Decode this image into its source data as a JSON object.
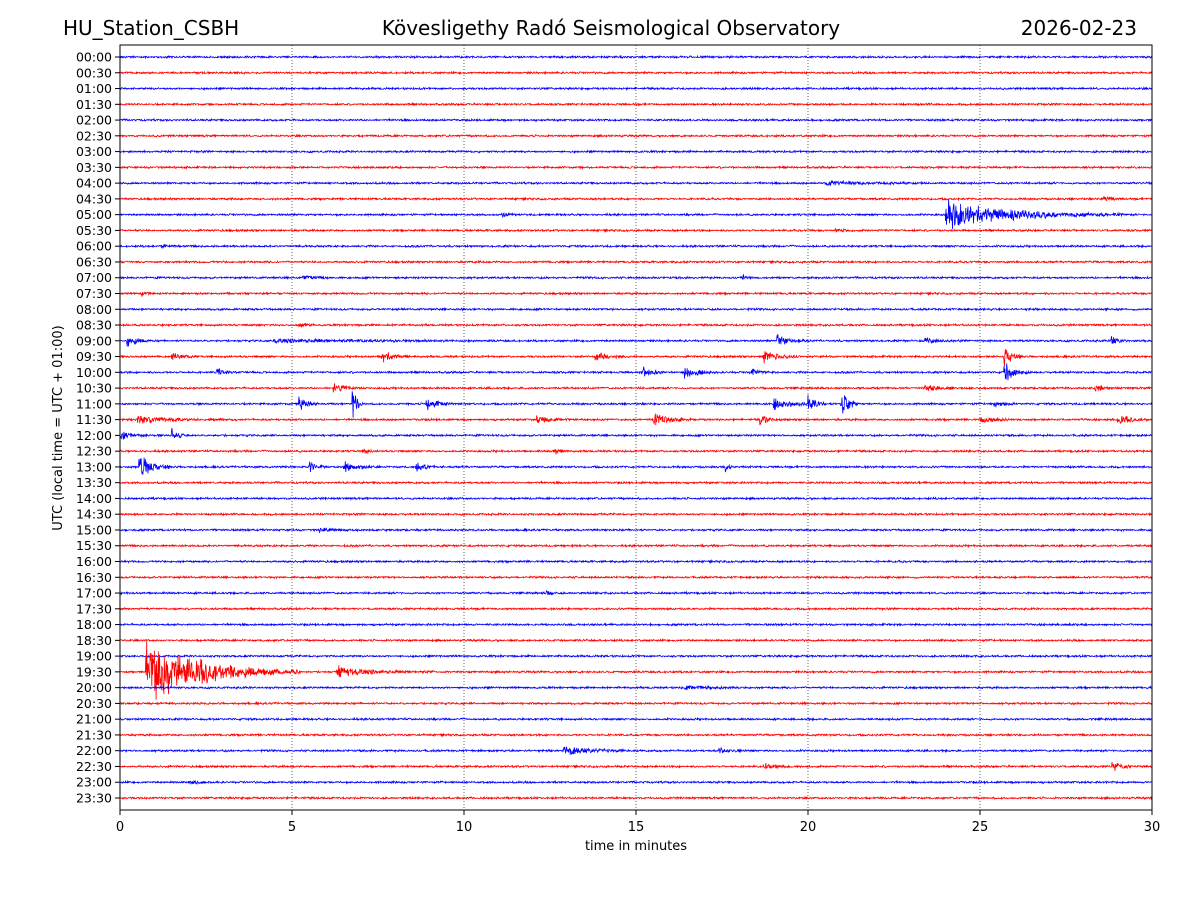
{
  "header": {
    "station": "HU_Station_CSBH",
    "observatory": "Kövesligethy Radó Seismological Observatory",
    "date": "2026-02-23"
  },
  "chart_data": {
    "type": "line",
    "title": "Kövesligethy Radó Seismological Observatory",
    "xlabel": "time in minutes",
    "ylabel": "UTC (local time = UTC + 01:00)",
    "xlim": [
      0,
      30
    ],
    "xticks": [
      "0",
      "5",
      "10",
      "15",
      "20",
      "25",
      "30"
    ],
    "grid": "vertical dotted at each 5 minutes",
    "row_labels": [
      "00:00",
      "00:30",
      "01:00",
      "01:30",
      "02:00",
      "02:30",
      "03:00",
      "03:30",
      "04:00",
      "04:30",
      "05:00",
      "05:30",
      "06:00",
      "06:30",
      "07:00",
      "07:30",
      "08:00",
      "08:30",
      "09:00",
      "09:30",
      "10:00",
      "10:30",
      "11:00",
      "11:30",
      "12:00",
      "12:30",
      "13:00",
      "13:30",
      "14:00",
      "14:30",
      "15:00",
      "15:30",
      "16:00",
      "16:30",
      "17:00",
      "17:30",
      "18:00",
      "18:30",
      "19:00",
      "19:30",
      "20:00",
      "20:30",
      "21:00",
      "21:30",
      "22:00",
      "22:30",
      "23:00",
      "23:30"
    ],
    "colors": [
      "#0000ff",
      "#ff0000"
    ],
    "noise_level": 0.05,
    "events": [
      {
        "row": 8,
        "start": 20.5,
        "dur": 3.0,
        "amp": 0.15
      },
      {
        "row": 9,
        "start": 28.6,
        "dur": 0.4,
        "amp": 0.2
      },
      {
        "row": 10,
        "start": 11.1,
        "dur": 0.4,
        "amp": 0.15
      },
      {
        "row": 10,
        "start": 24.0,
        "dur": 5.2,
        "amp": 1.0
      },
      {
        "row": 11,
        "start": 20.8,
        "dur": 0.5,
        "amp": 0.1
      },
      {
        "row": 12,
        "start": 1.2,
        "dur": 0.6,
        "amp": 0.15
      },
      {
        "row": 14,
        "start": 5.3,
        "dur": 0.8,
        "amp": 0.15
      },
      {
        "row": 14,
        "start": 18.1,
        "dur": 0.4,
        "amp": 0.2
      },
      {
        "row": 15,
        "start": 0.6,
        "dur": 0.4,
        "amp": 0.25
      },
      {
        "row": 17,
        "start": 5.2,
        "dur": 0.5,
        "amp": 0.25
      },
      {
        "row": 18,
        "start": 0.2,
        "dur": 0.7,
        "amp": 0.5
      },
      {
        "row": 18,
        "start": 4.5,
        "dur": 6.0,
        "amp": 0.15
      },
      {
        "row": 18,
        "start": 19.1,
        "dur": 0.8,
        "amp": 0.5
      },
      {
        "row": 18,
        "start": 23.4,
        "dur": 0.8,
        "amp": 0.3
      },
      {
        "row": 18,
        "start": 28.8,
        "dur": 0.5,
        "amp": 0.4
      },
      {
        "row": 19,
        "start": 1.5,
        "dur": 0.8,
        "amp": 0.25
      },
      {
        "row": 19,
        "start": 7.6,
        "dur": 0.8,
        "amp": 0.5
      },
      {
        "row": 19,
        "start": 13.8,
        "dur": 1.0,
        "amp": 0.35
      },
      {
        "row": 19,
        "start": 18.7,
        "dur": 1.0,
        "amp": 0.5
      },
      {
        "row": 19,
        "start": 25.7,
        "dur": 0.6,
        "amp": 0.9
      },
      {
        "row": 20,
        "start": 2.8,
        "dur": 0.6,
        "amp": 0.3
      },
      {
        "row": 20,
        "start": 15.2,
        "dur": 0.6,
        "amp": 0.5
      },
      {
        "row": 20,
        "start": 16.4,
        "dur": 1.0,
        "amp": 0.5
      },
      {
        "row": 20,
        "start": 18.3,
        "dur": 0.6,
        "amp": 0.3
      },
      {
        "row": 20,
        "start": 25.7,
        "dur": 0.8,
        "amp": 0.7
      },
      {
        "row": 21,
        "start": 6.2,
        "dur": 1.0,
        "amp": 0.35
      },
      {
        "row": 21,
        "start": 23.4,
        "dur": 1.0,
        "amp": 0.3
      },
      {
        "row": 21,
        "start": 28.3,
        "dur": 0.8,
        "amp": 0.3
      },
      {
        "row": 22,
        "start": 5.2,
        "dur": 0.6,
        "amp": 0.6
      },
      {
        "row": 22,
        "start": 6.75,
        "dur": 0.3,
        "amp": 1.5
      },
      {
        "row": 22,
        "start": 8.9,
        "dur": 0.8,
        "amp": 0.5
      },
      {
        "row": 22,
        "start": 19.0,
        "dur": 1.5,
        "amp": 0.45
      },
      {
        "row": 22,
        "start": 20.0,
        "dur": 0.5,
        "amp": 0.6
      },
      {
        "row": 22,
        "start": 20.95,
        "dur": 0.5,
        "amp": 1.4
      },
      {
        "row": 22,
        "start": 25.4,
        "dur": 0.6,
        "amp": 0.3
      },
      {
        "row": 23,
        "start": 0.5,
        "dur": 2.5,
        "amp": 0.25
      },
      {
        "row": 23,
        "start": 12.1,
        "dur": 1.0,
        "amp": 0.3
      },
      {
        "row": 23,
        "start": 15.5,
        "dur": 1.2,
        "amp": 0.5
      },
      {
        "row": 23,
        "start": 18.6,
        "dur": 0.6,
        "amp": 0.45
      },
      {
        "row": 23,
        "start": 25.0,
        "dur": 1.0,
        "amp": 0.3
      },
      {
        "row": 23,
        "start": 29.0,
        "dur": 1.0,
        "amp": 0.35
      },
      {
        "row": 24,
        "start": 0.0,
        "dur": 0.8,
        "amp": 0.35
      },
      {
        "row": 24,
        "start": 1.5,
        "dur": 0.5,
        "amp": 0.6
      },
      {
        "row": 25,
        "start": 7.1,
        "dur": 0.3,
        "amp": 0.3
      },
      {
        "row": 25,
        "start": 12.6,
        "dur": 0.4,
        "amp": 0.3
      },
      {
        "row": 26,
        "start": 0.55,
        "dur": 1.0,
        "amp": 1.0
      },
      {
        "row": 26,
        "start": 5.5,
        "dur": 0.6,
        "amp": 0.4
      },
      {
        "row": 26,
        "start": 6.5,
        "dur": 0.9,
        "amp": 0.6
      },
      {
        "row": 26,
        "start": 8.6,
        "dur": 0.6,
        "amp": 0.35
      },
      {
        "row": 26,
        "start": 17.6,
        "dur": 0.3,
        "amp": 0.3
      },
      {
        "row": 30,
        "start": 5.8,
        "dur": 1.0,
        "amp": 0.12
      },
      {
        "row": 34,
        "start": 12.4,
        "dur": 0.3,
        "amp": 0.3
      },
      {
        "row": 39,
        "start": 0.75,
        "dur": 4.5,
        "amp": 2.3
      },
      {
        "row": 39,
        "start": 6.3,
        "dur": 2.8,
        "amp": 0.4
      },
      {
        "row": 40,
        "start": 16.4,
        "dur": 1.8,
        "amp": 0.15
      },
      {
        "row": 44,
        "start": 12.9,
        "dur": 2.2,
        "amp": 0.3
      },
      {
        "row": 44,
        "start": 17.4,
        "dur": 0.8,
        "amp": 0.2
      },
      {
        "row": 45,
        "start": 18.7,
        "dur": 1.2,
        "amp": 0.2
      },
      {
        "row": 45,
        "start": 28.8,
        "dur": 0.8,
        "amp": 0.4
      },
      {
        "row": 46,
        "start": 2.0,
        "dur": 0.8,
        "amp": 0.12
      }
    ]
  }
}
